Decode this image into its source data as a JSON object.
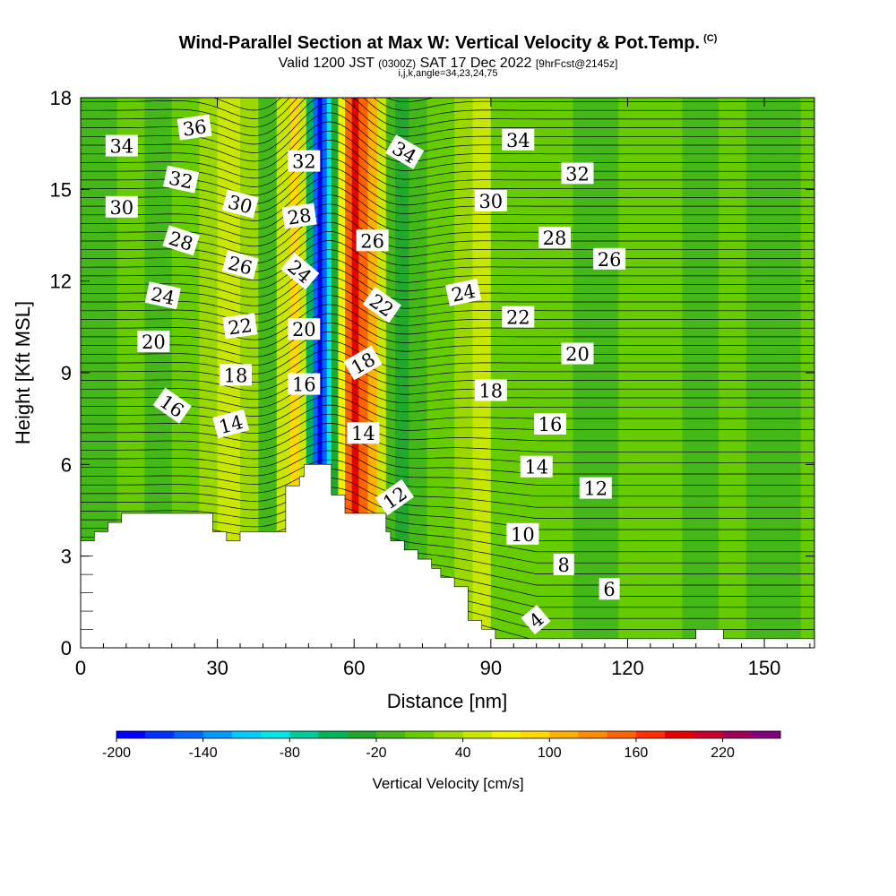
{
  "header": {
    "title": "Wind-Parallel Section at Max W: Vertical Velocity & Pot.Temp.",
    "copyright": "(C)",
    "valid_prefix": "Valid 1200 JST",
    "valid_utc": "(0300Z)",
    "valid_date": "SAT 17 Dec 2022",
    "forecast": "[9hrFcst@2145z]",
    "indices": "i,j,k,angle=34,23,24,75"
  },
  "chart_data": {
    "type": "contour",
    "xlabel": "Distance [nm]",
    "ylabel": "Height [Kft MSL]",
    "xlim": [
      0,
      161
    ],
    "ylim": [
      0,
      18
    ],
    "xticks": [
      0,
      30,
      60,
      90,
      120,
      150
    ],
    "yticks": [
      0,
      3,
      6,
      9,
      12,
      15,
      18
    ],
    "colorbar": {
      "title": "Vertical Velocity [cm/s]",
      "min": -200,
      "max": 260,
      "step": 20,
      "tick_labels": [
        "-200",
        "-140",
        "-80",
        "-20",
        "40",
        "100",
        "160",
        "220"
      ],
      "tick_values": [
        -200,
        -140,
        -80,
        -20,
        40,
        100,
        160,
        220
      ],
      "colors": [
        "#0000ff",
        "#0033ff",
        "#0066ff",
        "#0099ff",
        "#00ccff",
        "#00e5e5",
        "#00cc99",
        "#00b35a",
        "#22a82c",
        "#44b818",
        "#66cc00",
        "#9ad800",
        "#c8e600",
        "#f0f000",
        "#ffd800",
        "#ffb000",
        "#ff8c00",
        "#ff6400",
        "#ff3000",
        "#e60000",
        "#c8002e",
        "#a0005a",
        "#800080"
      ]
    },
    "vertical_velocity_bands": [
      {
        "x": 0,
        "w": -20
      },
      {
        "x": 8,
        "w": 10
      },
      {
        "x": 14,
        "w": -20
      },
      {
        "x": 20,
        "w": 10
      },
      {
        "x": 26,
        "w": 30
      },
      {
        "x": 30,
        "w": 50
      },
      {
        "x": 35,
        "w": 25
      },
      {
        "x": 39,
        "w": -20
      },
      {
        "x": 43,
        "w": 40
      },
      {
        "x": 46,
        "w": 95
      },
      {
        "x": 48,
        "w": 50
      },
      {
        "x": 49.5,
        "w": -60
      },
      {
        "x": 51,
        "w": -150
      },
      {
        "x": 52,
        "w": -195
      },
      {
        "x": 53,
        "w": -150
      },
      {
        "x": 54,
        "w": -90
      },
      {
        "x": 55,
        "w": -30
      },
      {
        "x": 56.5,
        "w": 60
      },
      {
        "x": 58,
        "w": 140
      },
      {
        "x": 59.5,
        "w": 180
      },
      {
        "x": 61,
        "w": 150
      },
      {
        "x": 63,
        "w": 100
      },
      {
        "x": 65,
        "w": 40
      },
      {
        "x": 67,
        "w": -15
      },
      {
        "x": 69,
        "w": -25
      },
      {
        "x": 72,
        "w": -5
      },
      {
        "x": 76,
        "w": 15
      },
      {
        "x": 82,
        "w": 30
      },
      {
        "x": 86,
        "w": 40
      },
      {
        "x": 90,
        "w": 10
      },
      {
        "x": 100,
        "w": 0
      },
      {
        "x": 108,
        "w": -10
      },
      {
        "x": 118,
        "w": 0
      },
      {
        "x": 126,
        "w": 5
      },
      {
        "x": 132,
        "w": -5
      },
      {
        "x": 140,
        "w": 0
      },
      {
        "x": 146,
        "w": -15
      },
      {
        "x": 152,
        "w": -5
      },
      {
        "x": 158,
        "w": 0
      },
      {
        "x": 161,
        "w": 0
      }
    ],
    "terrain": [
      {
        "x": 0,
        "z": 3.5
      },
      {
        "x": 3,
        "z": 3.5
      },
      {
        "x": 3,
        "z": 3.8
      },
      {
        "x": 6,
        "z": 3.8
      },
      {
        "x": 6,
        "z": 4.1
      },
      {
        "x": 9,
        "z": 4.1
      },
      {
        "x": 9,
        "z": 4.4
      },
      {
        "x": 29,
        "z": 4.4
      },
      {
        "x": 29,
        "z": 3.8
      },
      {
        "x": 32,
        "z": 3.8
      },
      {
        "x": 32,
        "z": 3.5
      },
      {
        "x": 35,
        "z": 3.5
      },
      {
        "x": 35,
        "z": 3.8
      },
      {
        "x": 45,
        "z": 3.8
      },
      {
        "x": 45,
        "z": 4.4
      },
      {
        "x": 45,
        "z": 5.3
      },
      {
        "x": 48,
        "z": 5.3
      },
      {
        "x": 48,
        "z": 5.6
      },
      {
        "x": 49,
        "z": 5.6
      },
      {
        "x": 49,
        "z": 6.0
      },
      {
        "x": 55,
        "z": 6.0
      },
      {
        "x": 55,
        "z": 5.0
      },
      {
        "x": 58,
        "z": 5.0
      },
      {
        "x": 58,
        "z": 4.4
      },
      {
        "x": 67,
        "z": 4.4
      },
      {
        "x": 67,
        "z": 3.8
      },
      {
        "x": 68,
        "z": 3.8
      },
      {
        "x": 68,
        "z": 3.5
      },
      {
        "x": 71,
        "z": 3.5
      },
      {
        "x": 71,
        "z": 3.2
      },
      {
        "x": 74,
        "z": 3.2
      },
      {
        "x": 74,
        "z": 2.9
      },
      {
        "x": 77,
        "z": 2.9
      },
      {
        "x": 77,
        "z": 2.6
      },
      {
        "x": 79,
        "z": 2.6
      },
      {
        "x": 79,
        "z": 2.3
      },
      {
        "x": 82,
        "z": 2.3
      },
      {
        "x": 82,
        "z": 2.0
      },
      {
        "x": 85,
        "z": 2.0
      },
      {
        "x": 85,
        "z": 1.4
      },
      {
        "x": 85,
        "z": 0.9
      },
      {
        "x": 88,
        "z": 0.9
      },
      {
        "x": 88,
        "z": 0.6
      },
      {
        "x": 91,
        "z": 0.6
      },
      {
        "x": 91,
        "z": 0.3
      },
      {
        "x": 135,
        "z": 0.3
      },
      {
        "x": 135,
        "z": 0.6
      },
      {
        "x": 141,
        "z": 0.6
      },
      {
        "x": 141,
        "z": 0.3
      },
      {
        "x": 161,
        "z": 0.3
      }
    ],
    "isentrope_labels": [
      {
        "text": "36",
        "x": 25,
        "z": 17.0,
        "rot": -8
      },
      {
        "text": "34",
        "x": 9,
        "z": 16.4,
        "rot": 0
      },
      {
        "text": "32",
        "x": 22,
        "z": 15.3,
        "rot": 12
      },
      {
        "text": "30",
        "x": 9,
        "z": 14.4,
        "rot": 0
      },
      {
        "text": "28",
        "x": 22,
        "z": 13.3,
        "rot": 18
      },
      {
        "text": "24",
        "x": 18,
        "z": 11.5,
        "rot": 12
      },
      {
        "text": "20",
        "x": 16,
        "z": 10.0,
        "rot": 0
      },
      {
        "text": "16",
        "x": 20,
        "z": 7.9,
        "rot": 35
      },
      {
        "text": "30",
        "x": 35,
        "z": 14.5,
        "rot": 15
      },
      {
        "text": "26",
        "x": 35,
        "z": 12.5,
        "rot": 15
      },
      {
        "text": "22",
        "x": 35,
        "z": 10.5,
        "rot": -8
      },
      {
        "text": "18",
        "x": 34,
        "z": 8.9,
        "rot": 0
      },
      {
        "text": "14",
        "x": 33,
        "z": 7.3,
        "rot": -15
      },
      {
        "text": "32",
        "x": 49,
        "z": 15.9,
        "rot": 0
      },
      {
        "text": "28",
        "x": 48,
        "z": 14.1,
        "rot": -8
      },
      {
        "text": "24",
        "x": 48,
        "z": 12.3,
        "rot": 40
      },
      {
        "text": "20",
        "x": 49,
        "z": 10.4,
        "rot": 0
      },
      {
        "text": "16",
        "x": 49,
        "z": 8.6,
        "rot": 0
      },
      {
        "text": "34",
        "x": 71,
        "z": 16.2,
        "rot": 30
      },
      {
        "text": "26",
        "x": 64,
        "z": 13.3,
        "rot": 0
      },
      {
        "text": "22",
        "x": 66,
        "z": 11.2,
        "rot": 35
      },
      {
        "text": "18",
        "x": 62,
        "z": 9.3,
        "rot": -30
      },
      {
        "text": "14",
        "x": 62,
        "z": 7.0,
        "rot": 0
      },
      {
        "text": "12",
        "x": 69,
        "z": 4.9,
        "rot": -35
      },
      {
        "text": "34",
        "x": 96,
        "z": 16.6,
        "rot": 0
      },
      {
        "text": "32",
        "x": 109,
        "z": 15.5,
        "rot": 0
      },
      {
        "text": "30",
        "x": 90,
        "z": 14.6,
        "rot": 0
      },
      {
        "text": "28",
        "x": 104,
        "z": 13.4,
        "rot": 0
      },
      {
        "text": "26",
        "x": 116,
        "z": 12.7,
        "rot": 0
      },
      {
        "text": "24",
        "x": 84,
        "z": 11.6,
        "rot": -12
      },
      {
        "text": "22",
        "x": 96,
        "z": 10.8,
        "rot": 0
      },
      {
        "text": "20",
        "x": 109,
        "z": 9.6,
        "rot": 0
      },
      {
        "text": "18",
        "x": 90,
        "z": 8.4,
        "rot": 0
      },
      {
        "text": "16",
        "x": 103,
        "z": 7.3,
        "rot": 0
      },
      {
        "text": "14",
        "x": 100,
        "z": 5.9,
        "rot": 0
      },
      {
        "text": "12",
        "x": 113,
        "z": 5.2,
        "rot": 0
      },
      {
        "text": "10",
        "x": 97,
        "z": 3.7,
        "rot": 0
      },
      {
        "text": "8",
        "x": 106,
        "z": 2.7,
        "rot": 0
      },
      {
        "text": "6",
        "x": 116,
        "z": 1.9,
        "rot": 0
      },
      {
        "text": "4",
        "x": 100,
        "z": 0.9,
        "rot": -40
      }
    ]
  }
}
